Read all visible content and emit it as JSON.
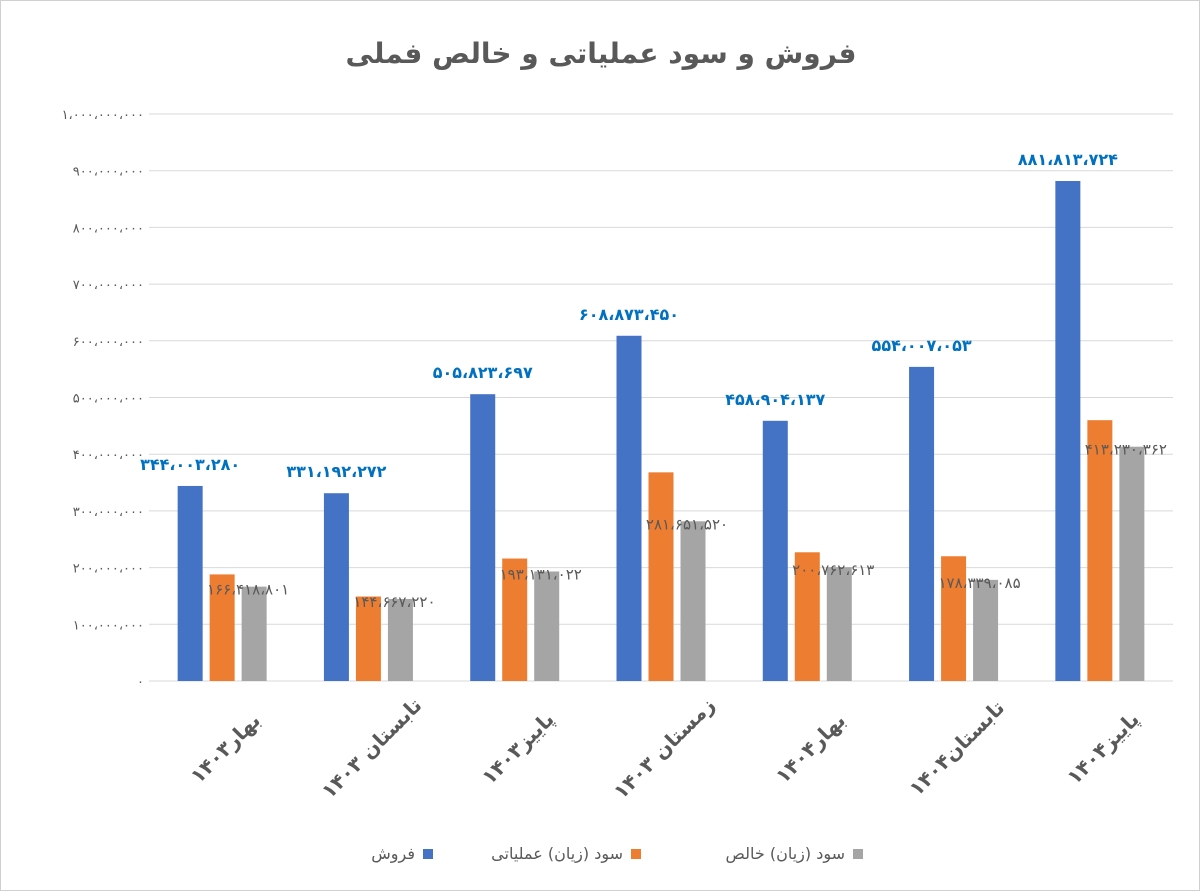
{
  "colors": {
    "sales": "#4472C4",
    "operating": "#ED7D31",
    "net": "#A5A5A5",
    "grid": "#D9D9D9",
    "axis_text": "#595959",
    "title": "#595959",
    "sales_label": "#0070C0",
    "other_label": "#595959"
  },
  "chart_data": {
    "type": "bar",
    "title": "فروش و سود عملیاتی و خالص فملی",
    "xlabel": "",
    "ylabel": "",
    "ylim": [
      0,
      1000000000
    ],
    "grid": true,
    "legend_position": "bottom",
    "y_ticks": [
      {
        "value": 0,
        "label": "۰"
      },
      {
        "value": 100000000,
        "label": "۱۰۰،۰۰۰،۰۰۰"
      },
      {
        "value": 200000000,
        "label": "۲۰۰،۰۰۰،۰۰۰"
      },
      {
        "value": 300000000,
        "label": "۳۰۰،۰۰۰،۰۰۰"
      },
      {
        "value": 400000000,
        "label": "۴۰۰،۰۰۰،۰۰۰"
      },
      {
        "value": 500000000,
        "label": "۵۰۰،۰۰۰،۰۰۰"
      },
      {
        "value": 600000000,
        "label": "۶۰۰،۰۰۰،۰۰۰"
      },
      {
        "value": 700000000,
        "label": "۷۰۰،۰۰۰،۰۰۰"
      },
      {
        "value": 800000000,
        "label": "۸۰۰،۰۰۰،۰۰۰"
      },
      {
        "value": 900000000,
        "label": "۹۰۰،۰۰۰،۰۰۰"
      },
      {
        "value": 1000000000,
        "label": "۱،۰۰۰،۰۰۰،۰۰۰"
      }
    ],
    "categories": [
      "بهار۱۴۰۳",
      "تابستان ۱۴۰۳",
      "پاییز۱۴۰۳",
      "زمستان ۱۴۰۳",
      "بهار۱۴۰۴",
      "تابستان۱۴۰۴",
      "پاییز۱۴۰۴"
    ],
    "series": [
      {
        "name": "فروش",
        "color_key": "sales",
        "label_color_key": "sales_label",
        "label_bold": true,
        "values": [
          344003280,
          331192272,
          505823697,
          608873450,
          458904137,
          554007053,
          881813724
        ],
        "data_labels": [
          "۳۴۴،۰۰۳،۲۸۰",
          "۳۳۱،۱۹۲،۲۷۲",
          "۵۰۵،۸۲۳،۶۹۷",
          "۶۰۸،۸۷۳،۴۵۰",
          "۴۵۸،۹۰۴،۱۳۷",
          "۵۵۴،۰۰۷،۰۵۳",
          "۸۸۱،۸۱۳،۷۲۴"
        ]
      },
      {
        "name": "سود (زیان) عملیاتی",
        "color_key": "operating",
        "values": [
          188000000,
          149000000,
          216000000,
          368000000,
          227000000,
          220000000,
          460000000
        ],
        "data_labels": []
      },
      {
        "name": "سود (زیان) خالص",
        "color_key": "net",
        "label_color_key": "other_label",
        "label_bold": false,
        "values": [
          166418801,
          144667220,
          193131022,
          281651520,
          200762613,
          178339085,
          413230362
        ],
        "data_labels": [
          "۱۶۶،۴۱۸،۸۰۱",
          "۱۴۴،۶۶۷،۲۲۰",
          "۱۹۳،۱۳۱،۰۲۲",
          "۲۸۱،۶۵۱،۵۲۰",
          "۲۰۰،۷۶۲،۶۱۳",
          "۱۷۸،۳۳۹،۰۸۵",
          "۴۱۳،۲۳۰،۳۶۲"
        ]
      }
    ]
  }
}
